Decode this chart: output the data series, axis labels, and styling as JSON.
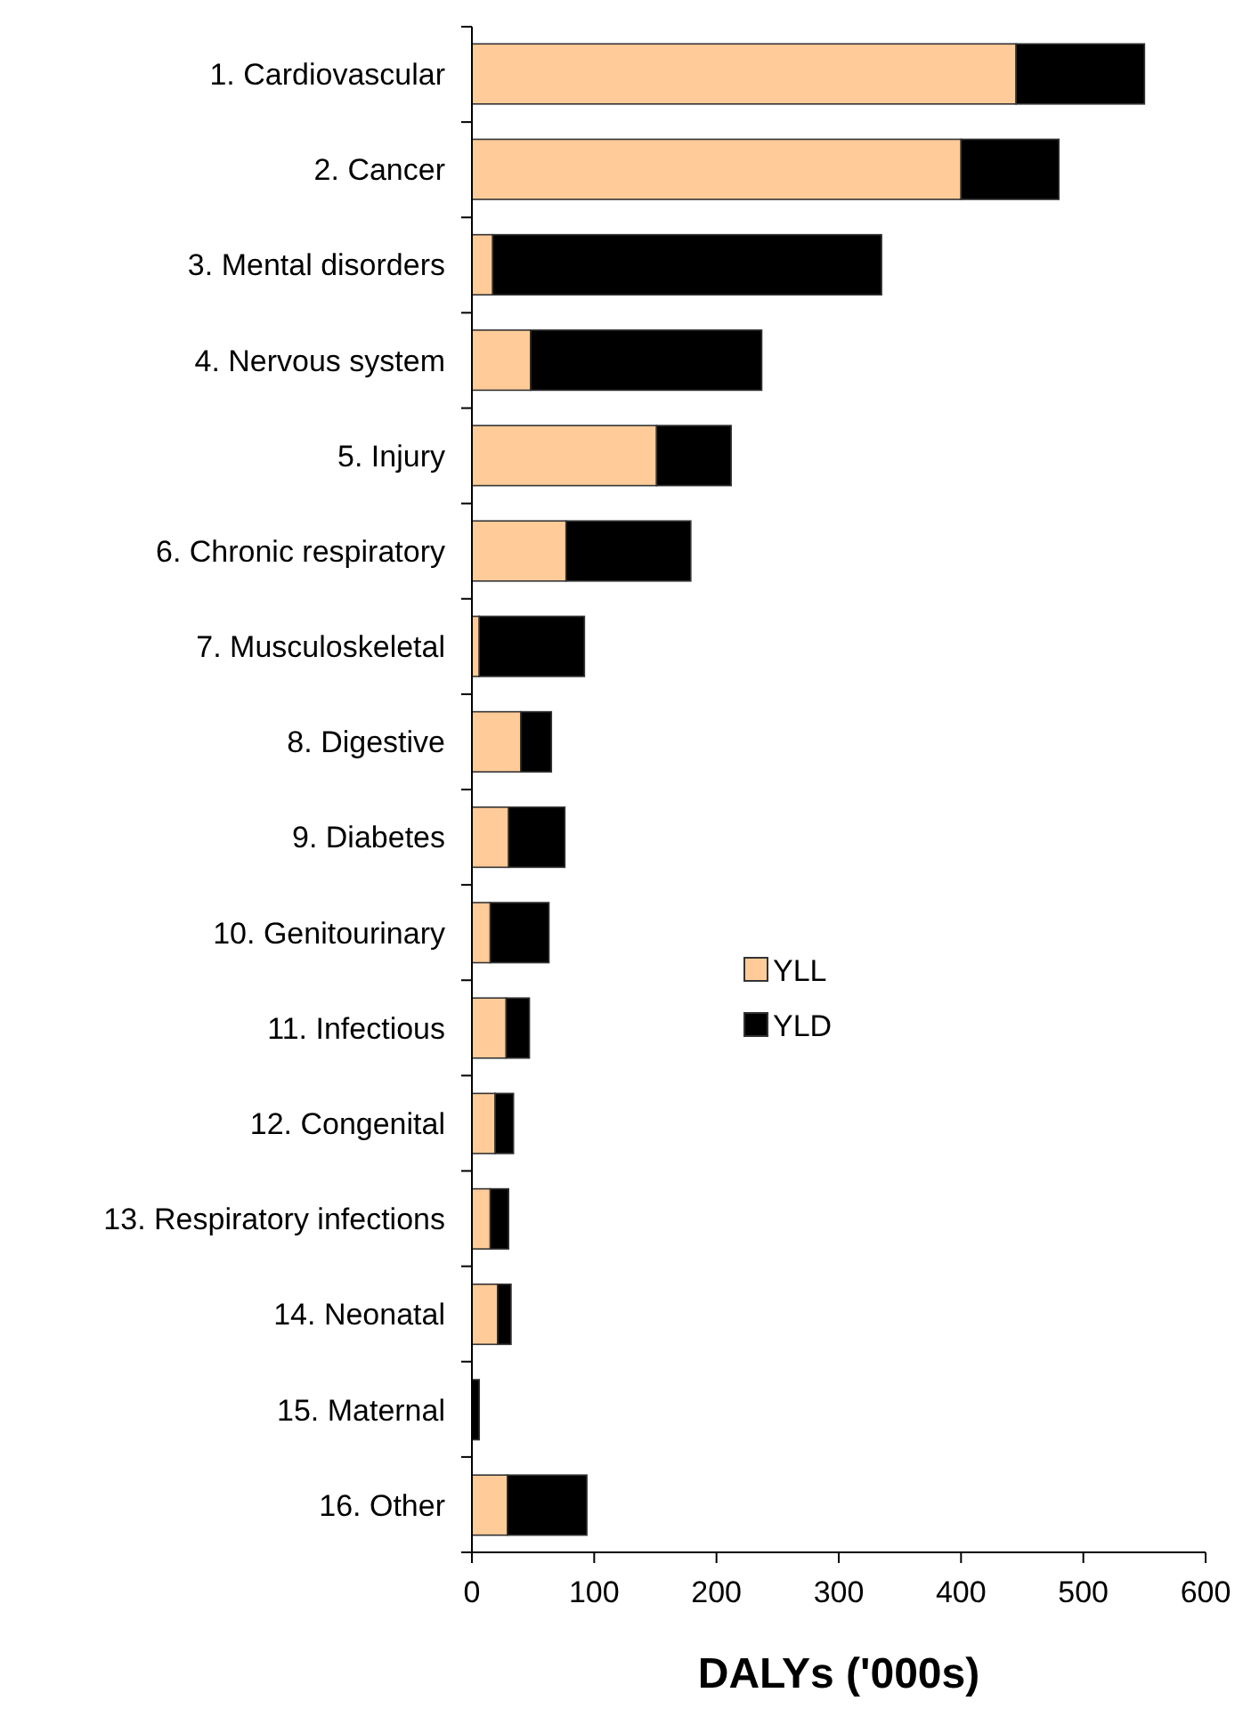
{
  "chart_data": {
    "type": "bar",
    "orientation": "horizontal",
    "stacked": true,
    "categories": [
      "1. Cardiovascular",
      "2. Cancer",
      "3. Mental disorders",
      "4. Nervous system",
      "5. Injury",
      "6. Chronic respiratory",
      "7. Musculoskeletal",
      "8. Digestive",
      "9. Diabetes",
      "10. Genitourinary",
      "11. Infectious",
      "12. Congenital",
      "13. Respiratory infections",
      "14. Neonatal",
      "15. Maternal",
      "16. Other"
    ],
    "series": [
      {
        "name": "YLL",
        "color": "#ffcc99",
        "values": [
          445,
          400,
          17,
          48,
          151,
          77,
          6,
          40,
          30,
          15,
          28,
          19,
          15,
          21,
          0,
          29
        ]
      },
      {
        "name": "YLD",
        "color": "#000000",
        "values": [
          105,
          80,
          318,
          189,
          61,
          102,
          86,
          25,
          46,
          48,
          19,
          15,
          15,
          11,
          6,
          65
        ]
      }
    ],
    "xlim": [
      0,
      600
    ],
    "xticks": [
      0,
      100,
      200,
      300,
      400,
      500,
      600
    ],
    "xlabel": "DALYs ('000s)",
    "legend": "bottom left",
    "grid": false
  }
}
